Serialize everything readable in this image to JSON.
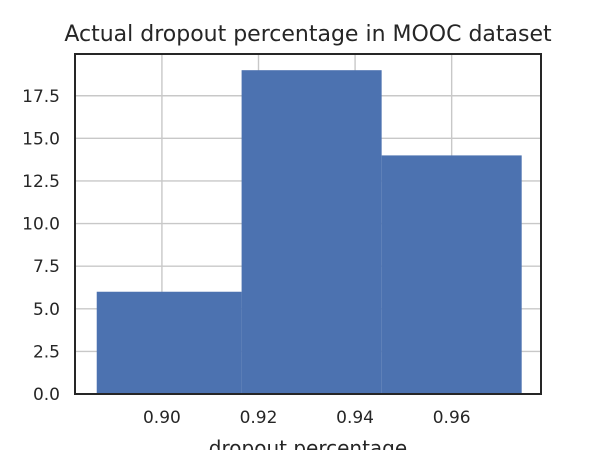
{
  "chart_data": {
    "type": "bar",
    "title": "Actual dropout percentage in MOOC dataset",
    "xlabel": "dropout percentage",
    "ylabel": "",
    "bins": [
      {
        "start": 0.8865,
        "end": 0.9165,
        "value": 6
      },
      {
        "start": 0.9165,
        "end": 0.9455,
        "value": 19
      },
      {
        "start": 0.9455,
        "end": 0.9745,
        "value": 14
      }
    ],
    "xlim": [
      0.882,
      0.9785
    ],
    "ylim": [
      0,
      19.95
    ],
    "xticks": [
      0.9,
      0.92,
      0.94,
      0.96
    ],
    "xtick_labels": [
      "0.90",
      "0.92",
      "0.94",
      "0.96"
    ],
    "yticks": [
      0.0,
      2.5,
      5.0,
      7.5,
      10.0,
      12.5,
      15.0,
      17.5
    ],
    "ytick_labels": [
      "0.0",
      "2.5",
      "5.0",
      "7.5",
      "10.0",
      "12.5",
      "15.0",
      "17.5"
    ],
    "grid": true,
    "bar_color": "#4c72b0"
  }
}
